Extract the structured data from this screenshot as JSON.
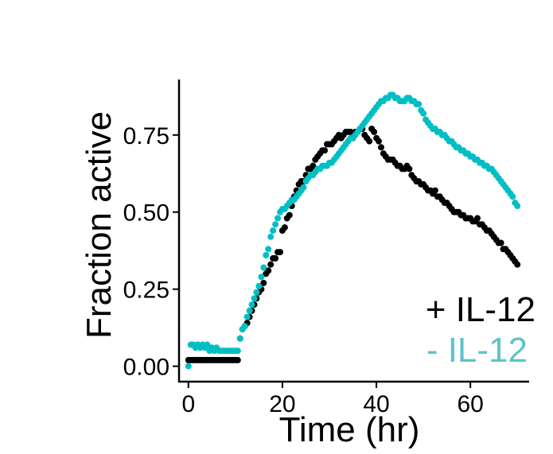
{
  "chart_data": {
    "type": "scatter",
    "xlabel": "Time (hr)",
    "ylabel": "Fraction active",
    "xlim": [
      -2,
      72.5
    ],
    "ylim": [
      -0.05,
      0.93
    ],
    "xticks": [
      0,
      20,
      40,
      60
    ],
    "xtick_labels": [
      "0",
      "20",
      "40",
      "60"
    ],
    "yticks": [
      0.0,
      0.25,
      0.5,
      0.75
    ],
    "ytick_labels": [
      "0.00",
      "0.25",
      "0.50",
      "0.75"
    ],
    "grid": false,
    "legend_placement": "bottom-right",
    "series": [
      {
        "name": "+ IL-12",
        "color": "#000000",
        "x": [
          0,
          0.5,
          1,
          1.5,
          2,
          2.5,
          3,
          3.5,
          4,
          4.5,
          5,
          5.5,
          6,
          6.5,
          7,
          7.5,
          8,
          8.5,
          9,
          9.5,
          10,
          10.5,
          11,
          11.5,
          12,
          12.5,
          13,
          13.5,
          14,
          14.5,
          15,
          15.5,
          16,
          16.5,
          17,
          17.5,
          18,
          18.5,
          19,
          19.5,
          20,
          20.5,
          21,
          21.5,
          22,
          22.5,
          23,
          23.5,
          24,
          24.5,
          25,
          25.5,
          26,
          26.5,
          27,
          27.5,
          28,
          28.5,
          29,
          29.5,
          30,
          30.5,
          31,
          31.5,
          32,
          32.5,
          33,
          33.5,
          34,
          34.5,
          35,
          35.5,
          36,
          36.5,
          37,
          37.5,
          38,
          38.5,
          39,
          39.5,
          40,
          40.5,
          41,
          41.5,
          42,
          42.5,
          43,
          43.5,
          44,
          44.5,
          45,
          45.5,
          46,
          46.5,
          47,
          47.5,
          48,
          48.5,
          49,
          49.5,
          50,
          50.5,
          51,
          51.5,
          52,
          52.5,
          53,
          53.5,
          54,
          54.5,
          55,
          55.5,
          56,
          56.5,
          57,
          57.5,
          58,
          58.5,
          59,
          59.5,
          60,
          60.5,
          61,
          61.5,
          62,
          62.5,
          63,
          63.5,
          64,
          64.5,
          65,
          65.5,
          66,
          66.5,
          67,
          67.5,
          68,
          68.5,
          69,
          69.5,
          70
        ],
        "y": [
          0.02,
          0.02,
          0.02,
          0.02,
          0.02,
          0.02,
          0.02,
          0.02,
          0.02,
          0.02,
          0.02,
          0.02,
          0.02,
          0.02,
          0.02,
          0.02,
          0.02,
          0.02,
          0.02,
          0.02,
          0.02,
          0.02,
          0.09,
          0.12,
          0.13,
          0.14,
          0.16,
          0.18,
          0.2,
          0.22,
          0.24,
          0.25,
          0.27,
          0.3,
          0.31,
          0.33,
          0.35,
          0.35,
          0.37,
          0.37,
          0.44,
          0.45,
          0.48,
          0.49,
          0.52,
          0.55,
          0.57,
          0.59,
          0.6,
          0.6,
          0.62,
          0.64,
          0.64,
          0.65,
          0.67,
          0.68,
          0.69,
          0.7,
          0.7,
          0.72,
          0.72,
          0.72,
          0.73,
          0.74,
          0.75,
          0.74,
          0.75,
          0.76,
          0.76,
          0.76,
          0.74,
          0.76,
          0.76,
          0.77,
          0.77,
          0.75,
          0.74,
          0.73,
          0.77,
          0.76,
          0.74,
          0.73,
          0.71,
          0.69,
          0.68,
          0.67,
          0.67,
          0.67,
          0.66,
          0.65,
          0.65,
          0.64,
          0.64,
          0.65,
          0.64,
          0.62,
          0.61,
          0.6,
          0.6,
          0.59,
          0.59,
          0.58,
          0.57,
          0.57,
          0.56,
          0.57,
          0.55,
          0.55,
          0.54,
          0.53,
          0.53,
          0.52,
          0.51,
          0.5,
          0.5,
          0.5,
          0.49,
          0.49,
          0.48,
          0.48,
          0.48,
          0.47,
          0.47,
          0.48,
          0.46,
          0.46,
          0.45,
          0.44,
          0.44,
          0.43,
          0.42,
          0.41,
          0.4,
          0.4,
          0.38,
          0.38,
          0.37,
          0.36,
          0.35,
          0.34,
          0.33
        ]
      },
      {
        "name": "- IL-12",
        "color": "#00bfc4",
        "x": [
          0,
          0.5,
          1,
          1.5,
          2,
          2.5,
          3,
          3.5,
          4,
          4.5,
          5,
          5.5,
          6,
          6.5,
          7,
          7.5,
          8,
          8.5,
          9,
          9.5,
          10,
          10.5,
          11,
          11.5,
          12,
          12.5,
          13,
          13.5,
          14,
          14.5,
          15,
          15.5,
          16,
          16.5,
          17,
          17.5,
          18,
          18.5,
          19,
          19.5,
          20,
          20.5,
          21,
          21.5,
          22,
          22.5,
          23,
          23.5,
          24,
          24.5,
          25,
          25.5,
          26,
          26.5,
          27,
          27.5,
          28,
          28.5,
          29,
          29.5,
          30,
          30.5,
          31,
          31.5,
          32,
          32.5,
          33,
          33.5,
          34,
          34.5,
          35,
          35.5,
          36,
          36.5,
          37,
          37.5,
          38,
          38.5,
          39,
          39.5,
          40,
          40.5,
          41,
          41.5,
          42,
          42.5,
          43,
          43.5,
          44,
          44.5,
          45,
          45.5,
          46,
          46.5,
          47,
          47.5,
          48,
          48.5,
          49,
          49.5,
          50,
          50.5,
          51,
          51.5,
          52,
          52.5,
          53,
          53.5,
          54,
          54.5,
          55,
          55.5,
          56,
          56.5,
          57,
          57.5,
          58,
          58.5,
          59,
          59.5,
          60,
          60.5,
          61,
          61.5,
          62,
          62.5,
          63,
          63.5,
          64,
          64.5,
          65,
          65.5,
          66,
          66.5,
          67,
          67.5,
          68,
          68.5,
          69,
          69.5,
          70
        ],
        "y": [
          0.0,
          0.07,
          0.07,
          0.06,
          0.07,
          0.06,
          0.07,
          0.06,
          0.07,
          0.05,
          0.06,
          0.05,
          0.06,
          0.05,
          0.05,
          0.05,
          0.05,
          0.05,
          0.05,
          0.05,
          0.05,
          0.05,
          0.09,
          0.12,
          0.13,
          0.16,
          0.18,
          0.2,
          0.22,
          0.24,
          0.26,
          0.29,
          0.32,
          0.36,
          0.38,
          0.42,
          0.44,
          0.46,
          0.48,
          0.5,
          0.51,
          0.51,
          0.52,
          0.53,
          0.54,
          0.54,
          0.55,
          0.56,
          0.57,
          0.58,
          0.6,
          0.61,
          0.62,
          0.62,
          0.63,
          0.64,
          0.64,
          0.65,
          0.65,
          0.65,
          0.66,
          0.66,
          0.67,
          0.68,
          0.69,
          0.7,
          0.71,
          0.72,
          0.73,
          0.74,
          0.74,
          0.75,
          0.76,
          0.77,
          0.78,
          0.79,
          0.8,
          0.81,
          0.82,
          0.83,
          0.84,
          0.85,
          0.86,
          0.86,
          0.87,
          0.87,
          0.88,
          0.88,
          0.87,
          0.87,
          0.86,
          0.86,
          0.86,
          0.87,
          0.87,
          0.86,
          0.86,
          0.85,
          0.85,
          0.83,
          0.82,
          0.8,
          0.79,
          0.78,
          0.77,
          0.77,
          0.76,
          0.76,
          0.75,
          0.75,
          0.74,
          0.73,
          0.73,
          0.72,
          0.71,
          0.71,
          0.7,
          0.7,
          0.69,
          0.69,
          0.68,
          0.68,
          0.67,
          0.67,
          0.66,
          0.66,
          0.65,
          0.65,
          0.64,
          0.64,
          0.63,
          0.62,
          0.61,
          0.6,
          0.59,
          0.58,
          0.57,
          0.56,
          0.55,
          0.53,
          0.52
        ]
      }
    ]
  }
}
